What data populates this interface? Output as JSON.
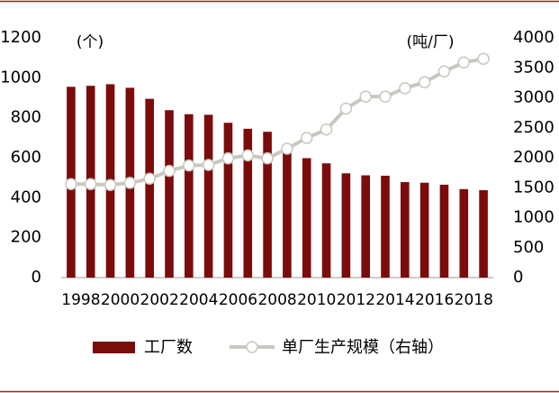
{
  "chart_data": {
    "type": "bar-line",
    "y_unit_label": "(个)",
    "y2_unit_label": "(吨/厂)",
    "categories": [
      "1998",
      null,
      "2000",
      null,
      "2002",
      null,
      "2004",
      null,
      "2006",
      null,
      "2008",
      null,
      "2010",
      null,
      "2012",
      null,
      "2014",
      null,
      "2016",
      null,
      "2018",
      null
    ],
    "series": [
      {
        "name": "工厂数",
        "type": "bar",
        "color": "#7b0c0c",
        "values": [
          955,
          960,
          968,
          950,
          895,
          838,
          818,
          815,
          775,
          745,
          730,
          640,
          598,
          572,
          522,
          512,
          510,
          478,
          475,
          465,
          443,
          438
        ]
      },
      {
        "name": "单厂生产规模（右轴）",
        "type": "line",
        "axis": "y2",
        "color": "#c8c8c0",
        "values": [
          1560,
          1560,
          1545,
          1580,
          1650,
          1780,
          1870,
          1880,
          1990,
          2040,
          1990,
          2150,
          2330,
          2470,
          2820,
          3020,
          3020,
          3160,
          3260,
          3440,
          3590,
          3650
        ]
      }
    ],
    "ylim": [
      0,
      1200
    ],
    "yticks": [
      0,
      200,
      400,
      600,
      800,
      1000,
      1200
    ],
    "y2lim": [
      0,
      4000
    ],
    "y2ticks": [
      0,
      500,
      1000,
      1500,
      2000,
      2500,
      3000,
      3500,
      4000
    ],
    "grid": false
  }
}
